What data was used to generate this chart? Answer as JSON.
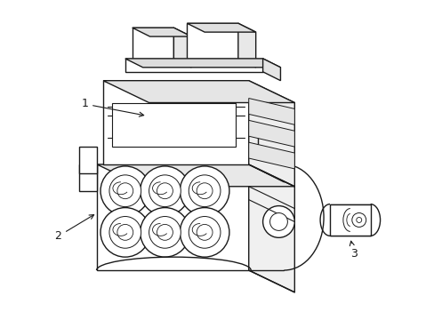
{
  "background_color": "#ffffff",
  "line_color": "#1a1a1a",
  "line_width": 1.0,
  "label_1": "1",
  "label_2": "2",
  "label_3": "3",
  "figsize": [
    4.89,
    3.6
  ],
  "dpi": 100
}
